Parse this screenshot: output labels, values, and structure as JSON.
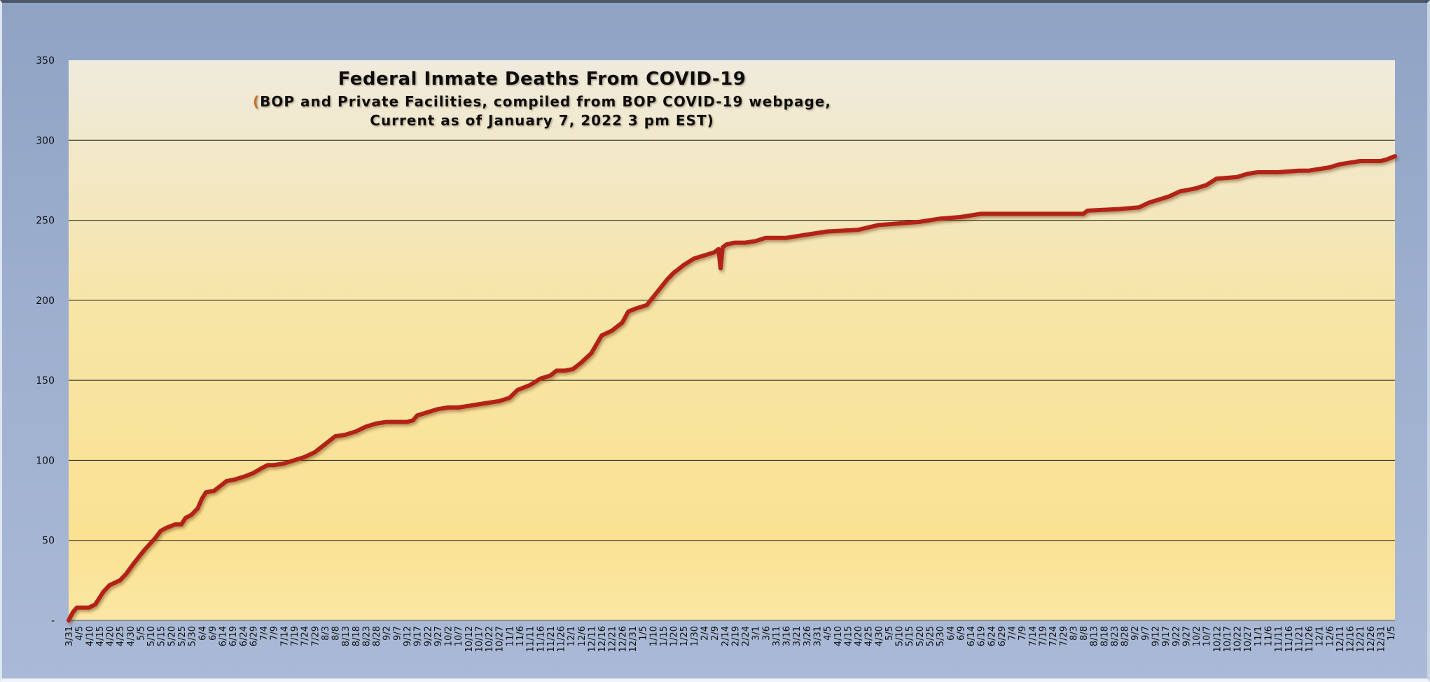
{
  "chart_data": {
    "type": "line",
    "title": "Federal Inmate Deaths From COVID-19",
    "subtitle_paren": "(",
    "subtitle_line1": "BOP and Private Facilities, compiled from BOP COVID-19 webpage,",
    "subtitle_line2": "Current as of January 7, 2022 3 pm EST)",
    "xlabel": "",
    "ylabel": "",
    "ylim": [
      0,
      350
    ],
    "y_ticks": [
      0,
      50,
      100,
      150,
      200,
      250,
      300,
      350
    ],
    "y_tick_labels": [
      "-",
      "50",
      "100",
      "150",
      "200",
      "250",
      "300",
      "350"
    ],
    "grid": true,
    "legend": "none",
    "x_start": "2020-03-31",
    "x_end": "2022-01-07",
    "x_tick_labels": [
      "3/31",
      "4/5",
      "4/10",
      "4/15",
      "4/20",
      "4/25",
      "4/30",
      "5/5",
      "5/10",
      "5/15",
      "5/20",
      "5/25",
      "5/30",
      "6/4",
      "6/9",
      "6/14",
      "6/19",
      "6/24",
      "6/29",
      "7/4",
      "7/9",
      "7/14",
      "7/19",
      "7/24",
      "7/29",
      "8/3",
      "8/8",
      "8/13",
      "8/18",
      "8/23",
      "8/28",
      "9/2",
      "9/7",
      "9/12",
      "9/17",
      "9/22",
      "9/27",
      "10/2",
      "10/7",
      "10/12",
      "10/17",
      "10/22",
      "10/27",
      "11/1",
      "11/6",
      "11/11",
      "11/16",
      "11/21",
      "11/26",
      "12/1",
      "12/6",
      "12/11",
      "12/16",
      "12/21",
      "12/26",
      "12/31",
      "1/5",
      "1/10",
      "1/15",
      "1/20",
      "1/25",
      "1/30",
      "2/4",
      "2/9",
      "2/14",
      "2/19",
      "2/24",
      "3/1",
      "3/6",
      "3/11",
      "3/16",
      "3/21",
      "3/26",
      "3/31",
      "4/5",
      "4/10",
      "4/15",
      "4/20",
      "4/25",
      "4/30",
      "5/5",
      "5/10",
      "5/15",
      "5/20",
      "5/25",
      "5/30",
      "6/4",
      "6/9",
      "6/14",
      "6/19",
      "6/24",
      "6/29",
      "7/4",
      "7/9",
      "7/14",
      "7/19",
      "7/24",
      "7/29",
      "8/3",
      "8/8",
      "8/13",
      "8/18",
      "8/23",
      "8/28",
      "9/2",
      "9/7",
      "9/12",
      "9/17",
      "9/22",
      "9/27",
      "10/2",
      "10/7",
      "10/12",
      "10/17",
      "10/22",
      "10/27",
      "11/1",
      "11/6",
      "11/11",
      "11/16",
      "11/21",
      "11/26",
      "12/1",
      "12/6",
      "12/11",
      "12/16",
      "12/21",
      "12/26",
      "12/31",
      "1/5"
    ],
    "series": [
      {
        "color": "#b22418",
        "points": [
          [
            "2020-03-31",
            0
          ],
          [
            "2020-04-02",
            5
          ],
          [
            "2020-04-04",
            8
          ],
          [
            "2020-04-10",
            8
          ],
          [
            "2020-04-13",
            10
          ],
          [
            "2020-04-17",
            18
          ],
          [
            "2020-04-20",
            22
          ],
          [
            "2020-04-25",
            25
          ],
          [
            "2020-04-28",
            29
          ],
          [
            "2020-05-02",
            36
          ],
          [
            "2020-05-07",
            44
          ],
          [
            "2020-05-12",
            51
          ],
          [
            "2020-05-15",
            56
          ],
          [
            "2020-05-18",
            58
          ],
          [
            "2020-05-22",
            60
          ],
          [
            "2020-05-25",
            60
          ],
          [
            "2020-05-27",
            64
          ],
          [
            "2020-05-30",
            66
          ],
          [
            "2020-06-02",
            70
          ],
          [
            "2020-06-04",
            76
          ],
          [
            "2020-06-06",
            80
          ],
          [
            "2020-06-10",
            81
          ],
          [
            "2020-06-14",
            85
          ],
          [
            "2020-06-16",
            87
          ],
          [
            "2020-06-20",
            88
          ],
          [
            "2020-06-25",
            90
          ],
          [
            "2020-06-29",
            92
          ],
          [
            "2020-07-03",
            95
          ],
          [
            "2020-07-06",
            97
          ],
          [
            "2020-07-09",
            97
          ],
          [
            "2020-07-14",
            98
          ],
          [
            "2020-07-19",
            100
          ],
          [
            "2020-07-24",
            102
          ],
          [
            "2020-07-29",
            105
          ],
          [
            "2020-08-03",
            110
          ],
          [
            "2020-08-08",
            115
          ],
          [
            "2020-08-13",
            116
          ],
          [
            "2020-08-18",
            118
          ],
          [
            "2020-08-23",
            121
          ],
          [
            "2020-08-28",
            123
          ],
          [
            "2020-09-02",
            124
          ],
          [
            "2020-09-07",
            124
          ],
          [
            "2020-09-12",
            124
          ],
          [
            "2020-09-15",
            125
          ],
          [
            "2020-09-17",
            128
          ],
          [
            "2020-09-22",
            130
          ],
          [
            "2020-09-27",
            132
          ],
          [
            "2020-10-02",
            133
          ],
          [
            "2020-10-07",
            133
          ],
          [
            "2020-10-12",
            134
          ],
          [
            "2020-10-17",
            135
          ],
          [
            "2020-10-22",
            136
          ],
          [
            "2020-10-27",
            137
          ],
          [
            "2020-11-01",
            139
          ],
          [
            "2020-11-05",
            144
          ],
          [
            "2020-11-11",
            147
          ],
          [
            "2020-11-16",
            151
          ],
          [
            "2020-11-21",
            153
          ],
          [
            "2020-11-24",
            156
          ],
          [
            "2020-11-28",
            156
          ],
          [
            "2020-12-02",
            157
          ],
          [
            "2020-12-06",
            161
          ],
          [
            "2020-12-11",
            167
          ],
          [
            "2020-12-16",
            178
          ],
          [
            "2020-12-21",
            181
          ],
          [
            "2020-12-26",
            186
          ],
          [
            "2020-12-29",
            193
          ],
          [
            "2021-01-02",
            195
          ],
          [
            "2021-01-07",
            197
          ],
          [
            "2021-01-12",
            205
          ],
          [
            "2021-01-17",
            213
          ],
          [
            "2021-01-20",
            217
          ],
          [
            "2021-01-25",
            222
          ],
          [
            "2021-01-30",
            226
          ],
          [
            "2021-02-04",
            228
          ],
          [
            "2021-02-09",
            230
          ],
          [
            "2021-02-11",
            232
          ],
          [
            "2021-02-12",
            220
          ],
          [
            "2021-02-13",
            233
          ],
          [
            "2021-02-15",
            235
          ],
          [
            "2021-02-19",
            236
          ],
          [
            "2021-02-24",
            236
          ],
          [
            "2021-03-01",
            237
          ],
          [
            "2021-03-06",
            239
          ],
          [
            "2021-03-16",
            239
          ],
          [
            "2021-03-26",
            241
          ],
          [
            "2021-04-05",
            243
          ],
          [
            "2021-04-20",
            244
          ],
          [
            "2021-04-30",
            247
          ],
          [
            "2021-05-10",
            248
          ],
          [
            "2021-05-20",
            249
          ],
          [
            "2021-05-30",
            251
          ],
          [
            "2021-06-09",
            252
          ],
          [
            "2021-06-19",
            254
          ],
          [
            "2021-07-04",
            254
          ],
          [
            "2021-07-24",
            254
          ],
          [
            "2021-08-08",
            254
          ],
          [
            "2021-08-10",
            256
          ],
          [
            "2021-08-25",
            257
          ],
          [
            "2021-09-04",
            258
          ],
          [
            "2021-09-09",
            261
          ],
          [
            "2021-09-14",
            263
          ],
          [
            "2021-09-19",
            265
          ],
          [
            "2021-09-24",
            268
          ],
          [
            "2021-10-02",
            270
          ],
          [
            "2021-10-07",
            272
          ],
          [
            "2021-10-12",
            276
          ],
          [
            "2021-10-22",
            277
          ],
          [
            "2021-10-27",
            279
          ],
          [
            "2021-11-01",
            280
          ],
          [
            "2021-11-11",
            280
          ],
          [
            "2021-11-21",
            281
          ],
          [
            "2021-11-26",
            281
          ],
          [
            "2021-12-01",
            282
          ],
          [
            "2021-12-06",
            283
          ],
          [
            "2021-12-11",
            285
          ],
          [
            "2021-12-16",
            286
          ],
          [
            "2021-12-21",
            287
          ],
          [
            "2021-12-26",
            287
          ],
          [
            "2021-12-31",
            287
          ],
          [
            "2022-01-03",
            288
          ],
          [
            "2022-01-07",
            290
          ]
        ]
      }
    ]
  }
}
